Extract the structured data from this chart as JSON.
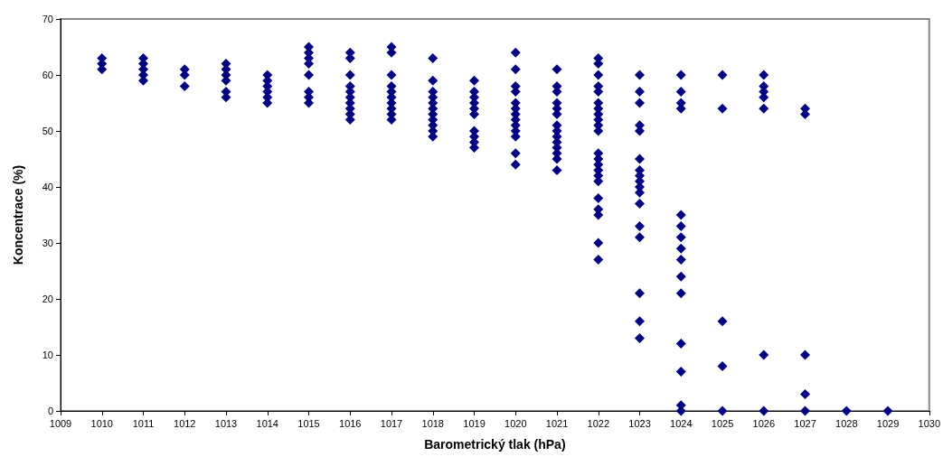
{
  "chart_data": {
    "type": "scatter",
    "xlabel": "Barometrický tlak (hPa)",
    "ylabel": "Koncentrace (%)",
    "marker": "diamond",
    "grid": false,
    "xlim": [
      1009,
      1030
    ],
    "xticks": [
      1009,
      1010,
      1011,
      1012,
      1013,
      1014,
      1015,
      1016,
      1017,
      1018,
      1019,
      1020,
      1021,
      1022,
      1023,
      1024,
      1025,
      1026,
      1027,
      1028,
      1029,
      1030
    ],
    "ylim": [
      0,
      70
    ],
    "yticks": [
      0,
      10,
      20,
      30,
      40,
      50,
      60,
      70
    ],
    "series": [
      {
        "color": "#000080",
        "x": [
          1010,
          1010,
          1010,
          1011,
          1011,
          1011,
          1011,
          1011,
          1012,
          1012,
          1012,
          1013,
          1013,
          1013,
          1013,
          1013,
          1013,
          1014,
          1014,
          1014,
          1014,
          1014,
          1014,
          1015,
          1015,
          1015,
          1015,
          1015,
          1015,
          1015,
          1015,
          1016,
          1016,
          1016,
          1016,
          1016,
          1016,
          1016,
          1016,
          1016,
          1016,
          1017,
          1017,
          1017,
          1017,
          1017,
          1017,
          1017,
          1017,
          1017,
          1017,
          1018,
          1018,
          1018,
          1018,
          1018,
          1018,
          1018,
          1018,
          1018,
          1018,
          1018,
          1019,
          1019,
          1019,
          1019,
          1019,
          1019,
          1019,
          1019,
          1019,
          1019,
          1020,
          1020,
          1020,
          1020,
          1020,
          1020,
          1020,
          1020,
          1020,
          1020,
          1020,
          1020,
          1020,
          1021,
          1021,
          1021,
          1021,
          1021,
          1021,
          1021,
          1021,
          1021,
          1021,
          1021,
          1021,
          1021,
          1021,
          1022,
          1022,
          1022,
          1022,
          1022,
          1022,
          1022,
          1022,
          1022,
          1022,
          1022,
          1022,
          1022,
          1022,
          1022,
          1022,
          1022,
          1022,
          1022,
          1022,
          1022,
          1022,
          1023,
          1023,
          1023,
          1023,
          1023,
          1023,
          1023,
          1023,
          1023,
          1023,
          1023,
          1023,
          1023,
          1023,
          1023,
          1023,
          1023,
          1024,
          1024,
          1024,
          1024,
          1024,
          1024,
          1024,
          1024,
          1024,
          1024,
          1024,
          1024,
          1024,
          1024,
          1024,
          1025,
          1025,
          1025,
          1025,
          1025,
          1026,
          1026,
          1026,
          1026,
          1026,
          1026,
          1026,
          1027,
          1027,
          1027,
          1027,
          1027,
          1028,
          1029
        ],
        "values": [
          63,
          62,
          61,
          63,
          62,
          61,
          60,
          59,
          61,
          60,
          58,
          62,
          61,
          60,
          59,
          57,
          56,
          60,
          59,
          58,
          57,
          56,
          55,
          65,
          64,
          63,
          62,
          60,
          57,
          56,
          55,
          64,
          63,
          60,
          58,
          57,
          56,
          55,
          54,
          53,
          52,
          65,
          64,
          60,
          58,
          57,
          56,
          55,
          54,
          53,
          52,
          63,
          59,
          57,
          56,
          55,
          54,
          53,
          52,
          51,
          50,
          49,
          59,
          57,
          56,
          55,
          54,
          53,
          50,
          49,
          48,
          47,
          64,
          61,
          58,
          57,
          55,
          54,
          53,
          52,
          51,
          50,
          49,
          46,
          44,
          61,
          58,
          57,
          55,
          54,
          53,
          51,
          50,
          49,
          48,
          47,
          46,
          45,
          43,
          63,
          62,
          60,
          58,
          57,
          55,
          54,
          53,
          52,
          51,
          50,
          46,
          45,
          44,
          43,
          42,
          41,
          38,
          36,
          35,
          30,
          27,
          60,
          57,
          55,
          51,
          50,
          45,
          43,
          42,
          41,
          40,
          39,
          37,
          33,
          31,
          21,
          16,
          13,
          60,
          57,
          55,
          54,
          35,
          33,
          31,
          29,
          27,
          24,
          21,
          12,
          7,
          1,
          0,
          60,
          54,
          16,
          8,
          0,
          60,
          58,
          57,
          56,
          54,
          10,
          0,
          54,
          53,
          10,
          3,
          0,
          0,
          0
        ]
      }
    ]
  }
}
